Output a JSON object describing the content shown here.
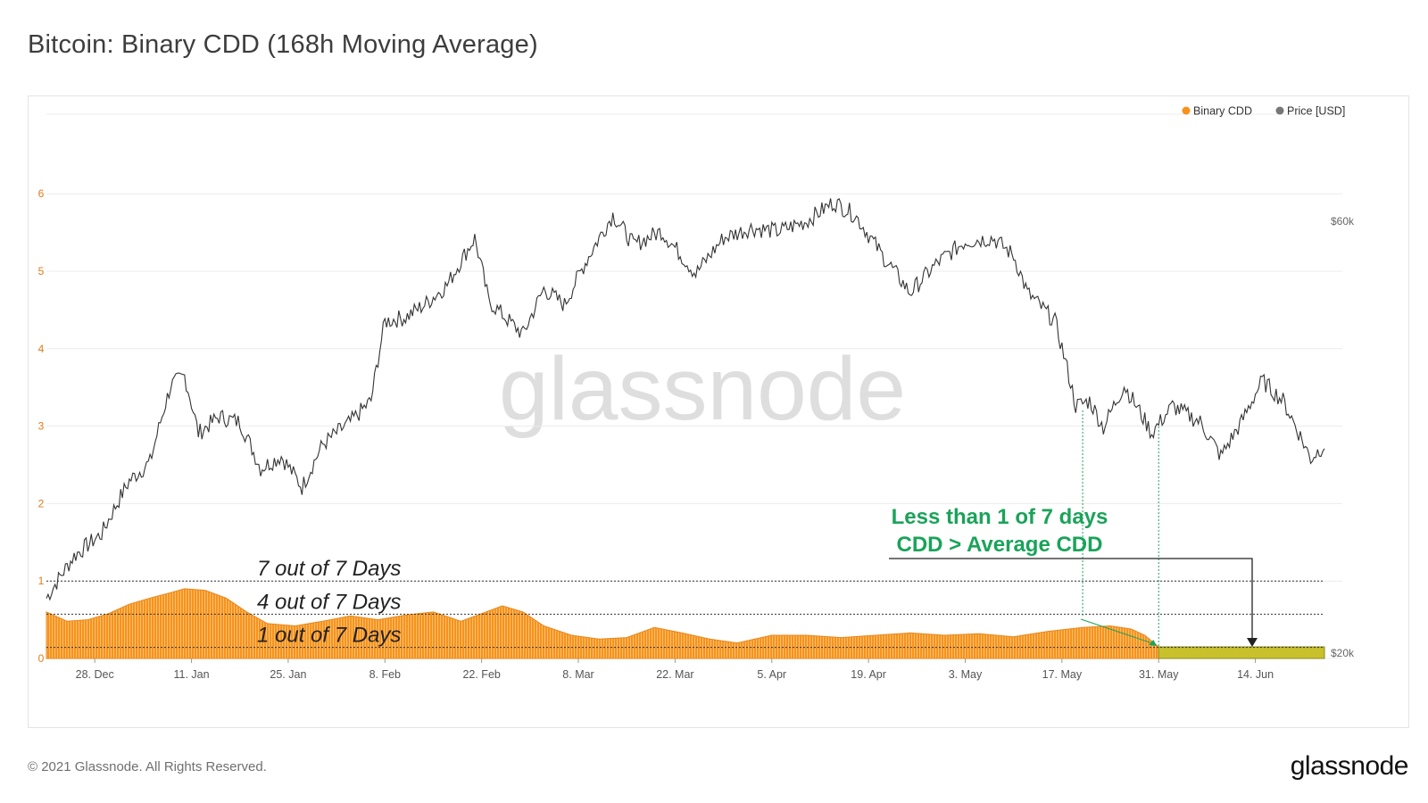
{
  "title": "Bitcoin: Binary CDD (168h Moving Average)",
  "watermark": "glassnode",
  "footer": {
    "copyright": "© 2021 Glassnode. All Rights Reserved.",
    "logo": "glassnode"
  },
  "colors": {
    "cdd": "#f7931a",
    "price": "#333333",
    "highlight": "#c9c12c",
    "annotation": "#1aa35a"
  },
  "chart_data": {
    "type": "line",
    "title": "Bitcoin: Binary CDD (168h Moving Average)",
    "legend": {
      "placement": "top-right",
      "entries": [
        {
          "name": "Binary CDD",
          "color": "#f7931a"
        },
        {
          "name": "Price [USD]",
          "color": "#777777"
        }
      ]
    },
    "x_ticks": [
      "28. Dec",
      "11. Jan",
      "25. Jan",
      "8. Feb",
      "22. Feb",
      "8. Mar",
      "22. Mar",
      "5. Apr",
      "19. Apr",
      "3. May",
      "17. May",
      "31. May",
      "14. Jun"
    ],
    "x_range": [
      "2020-12-21",
      "2021-06-24"
    ],
    "y_left": {
      "ticks": [
        "0",
        "1",
        "2",
        "3",
        "4",
        "5",
        "6"
      ],
      "range": [
        0,
        7
      ]
    },
    "y_right": {
      "ticks": [
        "$20k",
        "$60k"
      ],
      "scale": "log"
    },
    "grid": true,
    "series": [
      {
        "name": "Binary CDD",
        "type": "area",
        "dates": [
          "2020-12-21",
          "2020-12-24",
          "2020-12-27",
          "2020-12-30",
          "2021-01-02",
          "2021-01-05",
          "2021-01-08",
          "2021-01-10",
          "2021-01-13",
          "2021-01-16",
          "2021-01-19",
          "2021-01-22",
          "2021-01-26",
          "2021-01-30",
          "2021-02-03",
          "2021-02-07",
          "2021-02-11",
          "2021-02-15",
          "2021-02-19",
          "2021-02-22",
          "2021-02-25",
          "2021-02-28",
          "2021-03-03",
          "2021-03-07",
          "2021-03-11",
          "2021-03-15",
          "2021-03-19",
          "2021-03-23",
          "2021-03-27",
          "2021-03-31",
          "2021-04-05",
          "2021-04-10",
          "2021-04-15",
          "2021-04-20",
          "2021-04-25",
          "2021-04-30",
          "2021-05-05",
          "2021-05-10",
          "2021-05-15",
          "2021-05-20",
          "2021-05-24",
          "2021-05-27",
          "2021-05-29",
          "2021-05-31",
          "2021-06-05",
          "2021-06-10",
          "2021-06-15",
          "2021-06-24"
        ],
        "values": [
          0.6,
          0.48,
          0.5,
          0.58,
          0.7,
          0.78,
          0.85,
          0.9,
          0.88,
          0.78,
          0.6,
          0.45,
          0.42,
          0.48,
          0.55,
          0.5,
          0.56,
          0.6,
          0.48,
          0.58,
          0.68,
          0.6,
          0.42,
          0.3,
          0.25,
          0.27,
          0.4,
          0.33,
          0.25,
          0.2,
          0.3,
          0.3,
          0.27,
          0.3,
          0.33,
          0.3,
          0.32,
          0.28,
          0.35,
          0.4,
          0.42,
          0.38,
          0.3,
          0.15,
          0.15,
          0.15,
          0.15,
          0.15
        ]
      },
      {
        "name": "Price [USD]",
        "type": "line",
        "dates": [
          "2020-12-21",
          "2020-12-25",
          "2020-12-29",
          "2021-01-02",
          "2021-01-05",
          "2021-01-08",
          "2021-01-10",
          "2021-01-12",
          "2021-01-15",
          "2021-01-18",
          "2021-01-21",
          "2021-01-24",
          "2021-01-27",
          "2021-01-30",
          "2021-02-03",
          "2021-02-06",
          "2021-02-08",
          "2021-02-11",
          "2021-02-14",
          "2021-02-17",
          "2021-02-21",
          "2021-02-23",
          "2021-02-26",
          "2021-02-28",
          "2021-03-03",
          "2021-03-06",
          "2021-03-09",
          "2021-03-13",
          "2021-03-16",
          "2021-03-20",
          "2021-03-25",
          "2021-03-29",
          "2021-04-02",
          "2021-04-06",
          "2021-04-10",
          "2021-04-14",
          "2021-04-17",
          "2021-04-21",
          "2021-04-25",
          "2021-04-29",
          "2021-05-03",
          "2021-05-07",
          "2021-05-10",
          "2021-05-12",
          "2021-05-16",
          "2021-05-19",
          "2021-05-21",
          "2021-05-23",
          "2021-05-26",
          "2021-05-30",
          "2021-06-02",
          "2021-06-06",
          "2021-06-09",
          "2021-06-12",
          "2021-06-15",
          "2021-06-18",
          "2021-06-22",
          "2021-06-24"
        ],
        "values": [
          23000,
          25600,
          27100,
          31000,
          32500,
          39500,
          40500,
          35000,
          36500,
          36000,
          32000,
          33000,
          30500,
          34000,
          36000,
          38000,
          46500,
          47000,
          48700,
          51000,
          57500,
          49000,
          46500,
          45000,
          50500,
          48500,
          54000,
          61000,
          56500,
          58500,
          52500,
          57500,
          59000,
          58500,
          60000,
          63000,
          61000,
          55000,
          50000,
          54000,
          57000,
          57500,
          55000,
          50000,
          46500,
          37500,
          38000,
          35500,
          39500,
          35000,
          37500,
          36000,
          33000,
          36000,
          40000,
          38000,
          32800,
          34000
        ]
      }
    ],
    "reference_lines": [
      {
        "value": 1.0,
        "label": "7 out of 7 Days"
      },
      {
        "value": 0.571,
        "label": "4 out of 7 Days"
      },
      {
        "value": 0.143,
        "label": "1 out of 7 Days"
      }
    ],
    "annotations": [
      {
        "text_lines": [
          "Less than 1 of 7 days",
          "CDD > Average CDD"
        ],
        "color": "#1aa35a"
      }
    ],
    "highlight_range": {
      "start": "2021-05-31",
      "end": "2021-06-24"
    }
  }
}
